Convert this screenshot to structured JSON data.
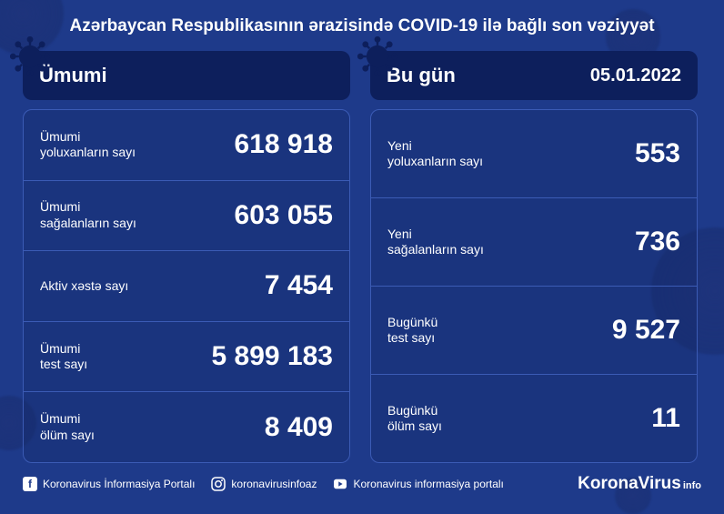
{
  "title": "Azərbaycan Respublikasının ərazisində COVID-19 ilə bağlı son vəziyyət",
  "date": "05.01.2022",
  "colors": {
    "background": "#1e3a8a",
    "card_bg": "#0d1f5c",
    "border": "#3b5bb5",
    "text": "#ffffff"
  },
  "panels": {
    "total": {
      "title": "Ümumi",
      "stats": [
        {
          "label": "Ümumi\nyoluxanların sayı",
          "value": "618 918"
        },
        {
          "label": "Ümumi\nsağalanların sayı",
          "value": "603 055"
        },
        {
          "label": "Aktiv xəstə sayı",
          "value": "7 454"
        },
        {
          "label": "Ümumi\ntest sayı",
          "value": "5 899 183"
        },
        {
          "label": "Ümumi\nölüm sayı",
          "value": "8 409"
        }
      ]
    },
    "today": {
      "title": "Bu gün",
      "stats": [
        {
          "label": "Yeni\nyoluxanların sayı",
          "value": "553"
        },
        {
          "label": "Yeni\nsağalanların sayı",
          "value": "736"
        },
        {
          "label": "Bugünkü\ntest sayı",
          "value": "9 527"
        },
        {
          "label": "Bugünkü\nölüm sayı",
          "value": "11"
        }
      ]
    }
  },
  "footer": {
    "socials": [
      {
        "icon": "facebook",
        "label": "Koronavirus İnformasiya Portalı"
      },
      {
        "icon": "instagram",
        "label": "koronavirusinfoaz"
      },
      {
        "icon": "youtube",
        "label": "Koronavirus informasiya portalı"
      }
    ],
    "brand_main": "KoronaVirus",
    "brand_sub": "info"
  }
}
